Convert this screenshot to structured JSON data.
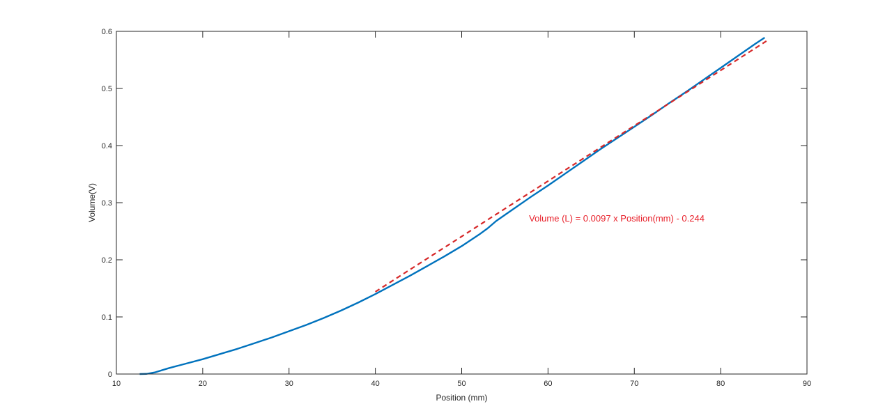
{
  "chart_data": {
    "type": "line",
    "title": "",
    "xlabel": "Position (mm)",
    "ylabel": "Volume(V)",
    "xlim": [
      10,
      90
    ],
    "ylim": [
      0,
      0.6
    ],
    "xticks": [
      10,
      20,
      30,
      40,
      50,
      60,
      70,
      80,
      90
    ],
    "yticks": [
      0,
      0.1,
      0.2,
      0.3,
      0.4,
      0.5,
      0.6
    ],
    "xtick_labels": [
      "10",
      "20",
      "30",
      "40",
      "50",
      "60",
      "70",
      "80",
      "90"
    ],
    "ytick_labels": [
      "0",
      "0.1",
      "0.2",
      "0.3",
      "0.4",
      "0.5",
      "0.6"
    ],
    "grid": false,
    "legend": "none",
    "series": [
      {
        "style": "solid",
        "color": "#0072BD",
        "x": [
          12.7,
          13.5,
          14.5,
          16,
          18,
          20,
          22,
          24,
          26,
          28,
          30,
          32,
          34,
          36,
          38,
          40,
          42,
          44,
          46,
          48,
          50,
          52,
          53,
          54,
          56,
          58,
          60,
          62,
          64,
          66,
          68,
          70,
          72,
          74,
          76,
          78,
          80,
          82,
          84,
          85.1
        ],
        "y": [
          0.0,
          0.0003,
          0.003,
          0.01,
          0.018,
          0.026,
          0.035,
          0.044,
          0.054,
          0.064,
          0.075,
          0.086,
          0.098,
          0.111,
          0.125,
          0.14,
          0.156,
          0.172,
          0.189,
          0.206,
          0.224,
          0.244,
          0.255,
          0.268,
          0.289,
          0.31,
          0.33,
          0.351,
          0.372,
          0.393,
          0.413,
          0.433,
          0.453,
          0.474,
          0.494,
          0.515,
          0.536,
          0.557,
          0.578,
          0.589
        ]
      },
      {
        "style": "dashed",
        "color": "#D62728",
        "x": [
          40,
          85.3
        ],
        "y": [
          0.144,
          0.583
        ]
      }
    ],
    "annotation": {
      "text": "Volume (L) = 0.0097 x Position(mm) - 0.244",
      "color": "#E8202A",
      "x": 57.8,
      "y": 0.267
    }
  }
}
